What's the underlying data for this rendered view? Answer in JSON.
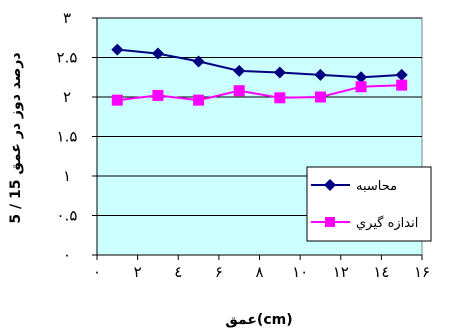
{
  "chart_data": {
    "type": "line",
    "xlabel": "(cm)عمق",
    "ylabel": "درصد دوز در عمق 15 / 5",
    "xlim": [
      0,
      16
    ],
    "ylim": [
      0,
      3
    ],
    "x_ticks": [
      "۰",
      "۲",
      "٤",
      "۶",
      "۸",
      "۱۰",
      "۱۲",
      "۱٤",
      "۱۶"
    ],
    "y_ticks": [
      "۰",
      "۰.۵",
      "۱",
      "۱.۵",
      "۲",
      "۲.۵",
      "۳"
    ],
    "x": [
      1,
      3,
      5,
      7,
      9,
      11,
      13,
      15
    ],
    "series": [
      {
        "name": "محاسبه",
        "color": "#000080",
        "marker": "diamond",
        "values": [
          2.6,
          2.55,
          2.45,
          2.33,
          2.31,
          2.28,
          2.25,
          2.28
        ]
      },
      {
        "name": "اندازه گيري",
        "color": "#ff00ff",
        "marker": "square",
        "values": [
          1.96,
          2.02,
          1.96,
          2.08,
          1.99,
          2.0,
          2.13,
          2.15
        ]
      }
    ],
    "plot_background": "#ccffff",
    "grid": true,
    "legend_position": "right"
  }
}
